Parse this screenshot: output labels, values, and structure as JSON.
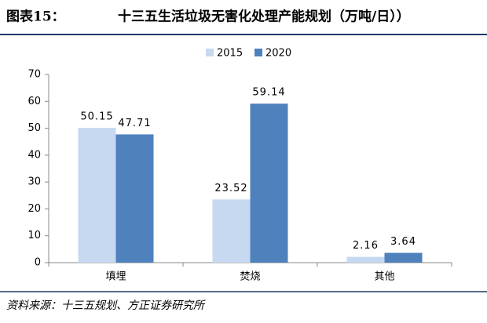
{
  "chart_data": {
    "type": "bar",
    "figure_label": "图表15：",
    "title": "十三五生活垃圾无害化处理产能规划（万吨/日））",
    "source": "资料来源：十三五规划、方正证券研究所",
    "categories": [
      "填埋",
      "焚烧",
      "其他"
    ],
    "series": [
      {
        "name": "2015",
        "color": "#c6d9f1",
        "values": [
          50.15,
          23.52,
          2.16
        ]
      },
      {
        "name": "2020",
        "color": "#4f81bd",
        "values": [
          47.71,
          59.14,
          3.64
        ]
      }
    ],
    "ylim": [
      0,
      70
    ],
    "yticks": [
      0,
      10,
      20,
      30,
      40,
      50,
      60,
      70
    ],
    "grid": false,
    "legend": "top"
  }
}
